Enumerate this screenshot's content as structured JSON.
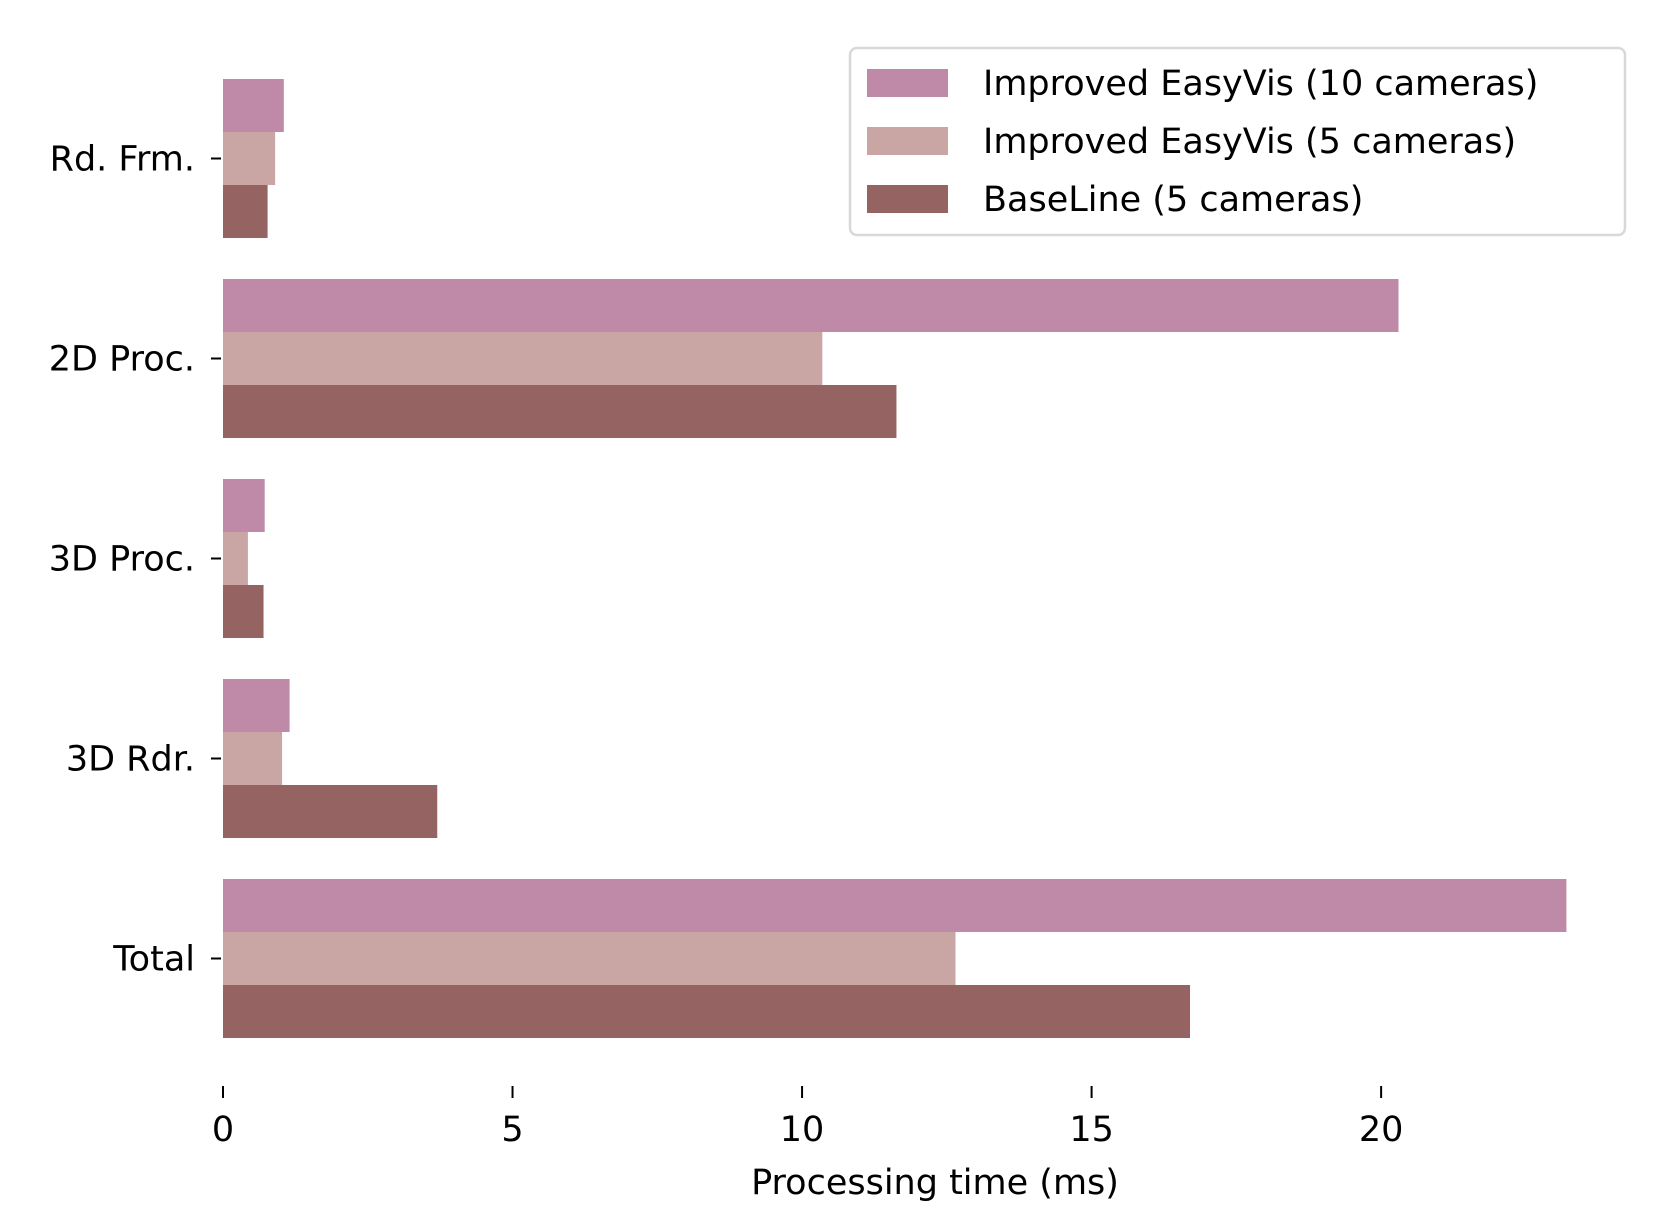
{
  "chart_data": {
    "type": "bar",
    "orientation": "horizontal",
    "categories": [
      "Rd. Frm.",
      "2D Proc.",
      "3D Proc.",
      "3D Rdr.",
      "Total"
    ],
    "series": [
      {
        "name": "Improved EasyVis (10 cameras)",
        "color": "#be8aa7",
        "values": [
          1.05,
          20.3,
          0.72,
          1.15,
          23.2
        ]
      },
      {
        "name": "Improved EasyVis (5 cameras)",
        "color": "#c9a5a4",
        "values": [
          0.9,
          10.35,
          0.43,
          1.02,
          12.65
        ]
      },
      {
        "name": "BaseLine (5 cameras)",
        "color": "#956361",
        "values": [
          0.77,
          11.63,
          0.7,
          3.7,
          16.7
        ]
      }
    ],
    "xlabel": "Processing time (ms)",
    "ylabel": "",
    "xlim": [
      0,
      23.4
    ],
    "xticks": [
      0,
      5,
      10,
      15,
      20
    ],
    "grid": false,
    "legend_position": "top-right"
  }
}
